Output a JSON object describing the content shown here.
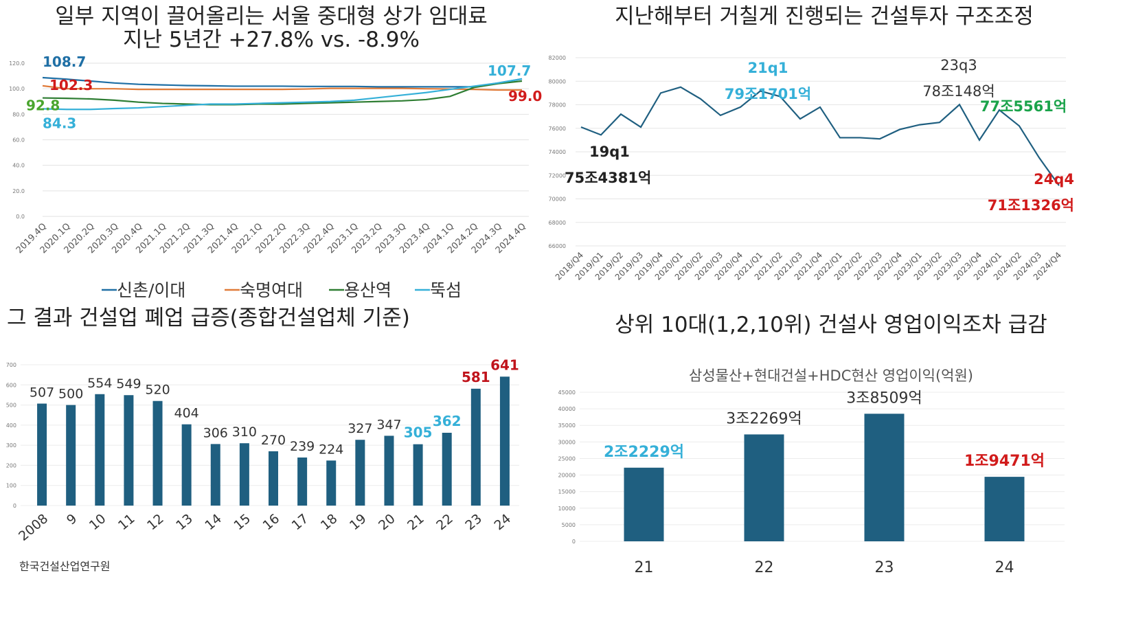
{
  "chart_data": [
    {
      "type": "line",
      "title": "일부 지역이 끌어올리는 서울 중대형 상가 임대료",
      "subtitle": "지난 5년간 +27.8% vs. -8.9%",
      "categories": [
        "2019.4Q",
        "2020.1Q",
        "2020.2Q",
        "2020.3Q",
        "2020.4Q",
        "2021.1Q",
        "2021.2Q",
        "2021.3Q",
        "2021.4Q",
        "2022.1Q",
        "2022.2Q",
        "2022.3Q",
        "2022.4Q",
        "2023.1Q",
        "2023.2Q",
        "2023.3Q",
        "2023.4Q",
        "2024.1Q",
        "2024.2Q",
        "2024.3Q",
        "2024.4Q"
      ],
      "yticks": [
        "0.0",
        "20.0",
        "40.0",
        "60.0",
        "80.0",
        "100.0",
        "120.0"
      ],
      "ylim": [
        0,
        120
      ],
      "grid": true,
      "legend_position": "bottom",
      "series": [
        {
          "name": "신촌/이대",
          "color": "#1f6fa5",
          "values": [
            108.7,
            107.5,
            106,
            104.5,
            103.5,
            103,
            102.5,
            102.3,
            102,
            102,
            102,
            101.8,
            101.8,
            101.8,
            101.5,
            101.5,
            101.5,
            101.5,
            101.5,
            104.5,
            107.7
          ]
        },
        {
          "name": "숙명여대",
          "color": "#e07b39",
          "values": [
            102.3,
            100,
            100,
            100,
            99.5,
            99.5,
            99.5,
            99.5,
            99.5,
            99.5,
            99.5,
            99.8,
            100.3,
            100.3,
            100.3,
            100.3,
            100,
            99.8,
            99.5,
            99,
            99.0
          ]
        },
        {
          "name": "용산역",
          "color": "#2e7d32",
          "values": [
            92.8,
            92.5,
            92,
            91,
            89.5,
            88.5,
            88,
            87.5,
            87.5,
            88,
            88,
            88.5,
            89,
            89.5,
            90,
            90.5,
            91.5,
            94,
            101,
            104,
            106
          ]
        },
        {
          "name": "뚝섬",
          "color": "#35b0d8",
          "values": [
            84.3,
            83.8,
            83.8,
            84.5,
            85,
            86,
            87,
            88,
            88,
            88.5,
            89,
            89.5,
            90,
            91,
            93,
            95,
            97,
            99.5,
            102,
            104.5,
            107.7
          ]
        }
      ],
      "labels": [
        {
          "text": "108.7",
          "color": "#1f6fa5",
          "series": 0,
          "index": 0
        },
        {
          "text": "102.3",
          "color": "#d11b1b",
          "series": 1,
          "index": 0
        },
        {
          "text": "92.8",
          "color": "#4aa52e",
          "series": 2,
          "index": 0
        },
        {
          "text": "84.3",
          "color": "#35b0d8",
          "series": 3,
          "index": 0
        },
        {
          "text": "107.7",
          "color": "#35b0d8",
          "series": 3,
          "index": 20
        },
        {
          "text": "99.0",
          "color": "#d11b1b",
          "series": 1,
          "index": 20
        }
      ]
    },
    {
      "type": "line",
      "title": "지난해부터 거칠게 진행되는 건설투자 구조조정",
      "categories": [
        "2018/Q4",
        "2019/Q1",
        "2019/Q2",
        "2019/Q3",
        "2019/Q4",
        "2020/Q1",
        "2020/Q2",
        "2020/Q3",
        "2020/Q4",
        "2021/Q1",
        "2021/Q2",
        "2021/Q3",
        "2021/Q4",
        "2022/Q1",
        "2022/Q2",
        "2022/Q3",
        "2022/Q4",
        "2023/Q1",
        "2023/Q2",
        "2023/Q3",
        "2023/Q4",
        "2024/Q1",
        "2024/Q2",
        "2024/Q3",
        "2024/Q4"
      ],
      "yticks": [
        "66000",
        "68000",
        "70000",
        "72000",
        "74000",
        "76000",
        "78000",
        "80000",
        "82000"
      ],
      "ylim": [
        66000,
        82000
      ],
      "grid": true,
      "series": [
        {
          "color": "#1f5f80",
          "values": [
            76100,
            75438,
            77200,
            76100,
            79000,
            79500,
            78500,
            77100,
            77800,
            79170,
            78700,
            76800,
            77800,
            75200,
            75200,
            75100,
            75900,
            76300,
            76500,
            78015,
            75000,
            77556,
            76200,
            73500,
            71133
          ]
        }
      ],
      "annotations": [
        {
          "lines": [
            "19q1",
            "75조4381억"
          ],
          "color": "#222",
          "bold": true
        },
        {
          "lines": [
            "21q1",
            "79조1701억"
          ],
          "color": "#35b0d8",
          "bold": true
        },
        {
          "lines": [
            "23q3",
            "78조148억"
          ],
          "color": "#333",
          "bold": false
        },
        {
          "lines": [
            "77조5561억"
          ],
          "color": "#1aa34a",
          "bold": true
        },
        {
          "lines": [
            "24q4",
            "71조1326억"
          ],
          "color": "#d11b1b",
          "bold": true
        }
      ]
    },
    {
      "type": "bar",
      "title": "그 결과 건설업 폐업 급증(종합건설업체 기준)",
      "categories": [
        "2008",
        "9",
        "10",
        "11",
        "12",
        "13",
        "14",
        "15",
        "16",
        "17",
        "18",
        "19",
        "20",
        "21",
        "22",
        "23",
        "24"
      ],
      "values": [
        507,
        500,
        554,
        549,
        520,
        404,
        306,
        310,
        270,
        239,
        224,
        327,
        347,
        305,
        362,
        581,
        641
      ],
      "value_colors": [
        "#333",
        "#333",
        "#333",
        "#333",
        "#333",
        "#333",
        "#333",
        "#333",
        "#333",
        "#333",
        "#333",
        "#333",
        "#333",
        "#35b0d8",
        "#35b0d8",
        "#c0141c",
        "#c0141c"
      ],
      "yticks": [
        "0",
        "100",
        "200",
        "300",
        "400",
        "500",
        "600",
        "700"
      ],
      "ylim": [
        0,
        700
      ],
      "grid": true,
      "bar_color": "#1f5f80",
      "source": "한국건설산업연구원"
    },
    {
      "type": "bar",
      "title": "상위 10대(1,2,10위) 건설사 영업이익조차 급감",
      "subtitle": "삼성물산+현대건설+HDC현산 영업이익(억원)",
      "categories": [
        "21",
        "22",
        "23",
        "24"
      ],
      "values": [
        22229,
        32269,
        38509,
        19471
      ],
      "value_labels": [
        "2조2229억",
        "3조2269억",
        "3조8509억",
        "1조9471억"
      ],
      "value_colors": [
        "#35b0d8",
        "#333",
        "#333",
        "#d11b1b"
      ],
      "value_bold": [
        true,
        false,
        false,
        true
      ],
      "yticks": [
        "0",
        "5000",
        "10000",
        "15000",
        "20000",
        "25000",
        "30000",
        "35000",
        "40000",
        "45000"
      ],
      "ylim": [
        0,
        45000
      ],
      "grid": true,
      "bar_color": "#1f5f80"
    }
  ]
}
